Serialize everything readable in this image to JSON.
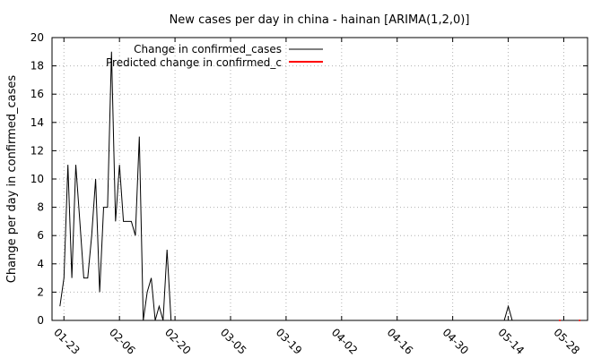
{
  "chart_data": {
    "type": "line",
    "title": "New cases per day in china - hainan [ARIMA(1,2,0)]",
    "xlabel": "",
    "ylabel": "Change per day in confirmed_cases",
    "ylim": [
      0,
      20
    ],
    "yticks": [
      0,
      2,
      4,
      6,
      8,
      10,
      12,
      14,
      16,
      18,
      20
    ],
    "xlim": [
      "2020-01-20",
      "2020-06-03"
    ],
    "xticks": [
      "01-23",
      "02-06",
      "02-20",
      "03-05",
      "03-19",
      "04-02",
      "04-16",
      "04-30",
      "05-14",
      "05-28"
    ],
    "grid": true,
    "legend_position": "top-left",
    "series": [
      {
        "name": "Change in confirmed_cases",
        "color": "#000000",
        "x": [
          "01-22",
          "01-23",
          "01-24",
          "01-25",
          "01-26",
          "01-27",
          "01-28",
          "01-29",
          "01-30",
          "01-31",
          "02-01",
          "02-02",
          "02-03",
          "02-04",
          "02-05",
          "02-06",
          "02-07",
          "02-08",
          "02-09",
          "02-10",
          "02-11",
          "02-12",
          "02-13",
          "02-14",
          "02-15",
          "02-16",
          "02-17",
          "02-18",
          "02-19",
          "02-20",
          "02-21",
          "02-22",
          "05-12",
          "05-13",
          "05-14",
          "05-15"
        ],
        "values": [
          1,
          3,
          11,
          3,
          11,
          7,
          3,
          3,
          6,
          10,
          2,
          8,
          8,
          19,
          7,
          11,
          7,
          7,
          7,
          6,
          13,
          0,
          2,
          3,
          0,
          1,
          0,
          5,
          0,
          0,
          0,
          0,
          0,
          0,
          1,
          0
        ]
      },
      {
        "name": "Predicted change in confirmed_c",
        "color": "#ff0000",
        "x": [
          "05-27",
          "06-01"
        ],
        "values": [
          0,
          0
        ]
      }
    ]
  }
}
